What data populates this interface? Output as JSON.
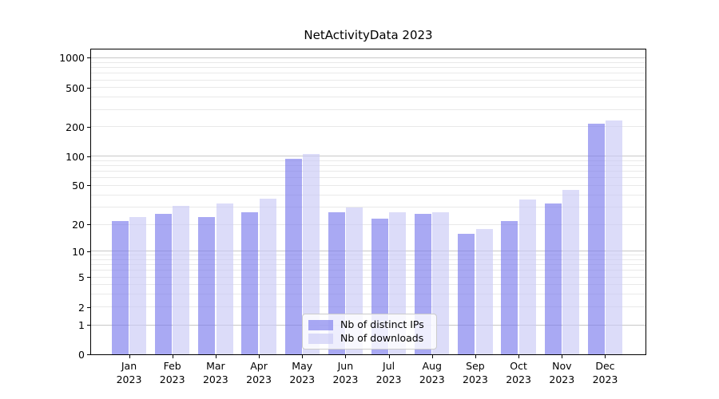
{
  "title": "NetActivityData 2023",
  "chart_data": {
    "type": "bar",
    "title": "NetActivityData 2023",
    "yscale": "symlog-like",
    "grid": "on",
    "legend_position": "lower center",
    "categories": [
      "Jan",
      "Feb",
      "Mar",
      "Apr",
      "May",
      "Jun",
      "Jul",
      "Aug",
      "Sep",
      "Oct",
      "Nov",
      "Dec"
    ],
    "category_year": "2023",
    "y_ticks": [
      0,
      1,
      2,
      5,
      10,
      20,
      50,
      100,
      200,
      500,
      1000
    ],
    "y_minor_ticks": [
      3,
      4,
      6,
      7,
      8,
      9,
      30,
      40,
      60,
      70,
      80,
      90,
      300,
      400,
      600,
      700,
      800,
      900
    ],
    "ylim": [
      0,
      1150
    ],
    "series": [
      {
        "key": "distinct-ips",
        "name": "Nb of distinct IPs",
        "color": "rgba(123,123,237,0.65)",
        "values": [
          22,
          26,
          24,
          27,
          95,
          27,
          23,
          26,
          16,
          22,
          33,
          215
        ]
      },
      {
        "key": "downloads",
        "name": "Nb of downloads",
        "color": "rgba(201,201,246,0.65)",
        "values": [
          24,
          31,
          33,
          37,
          105,
          30,
          27,
          27,
          18,
          36,
          45,
          235
        ]
      }
    ]
  },
  "colors": {
    "grid_major": "#c8c8c8",
    "grid_minor": "#e9e9e9",
    "spine": "#000000",
    "background": "#ffffff",
    "text": "#000000"
  }
}
